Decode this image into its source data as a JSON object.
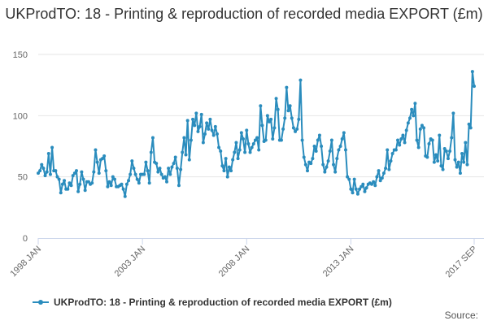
{
  "chart_data": {
    "type": "line",
    "title": "UKProdTO: 18 - Printing & reproduction of recorded media EXPORT (£m)",
    "xlabel": "",
    "ylabel": "",
    "ylim": [
      0,
      150
    ],
    "yticks": [
      0,
      50,
      100,
      150
    ],
    "xticks": [
      "1998 JAN",
      "2003 JAN",
      "2008 JAN",
      "2013 JAN",
      "2017 SEP"
    ],
    "grid": true,
    "legend_position": "bottom",
    "x_start": "1998 JAN",
    "x_end": "2017 SEP",
    "frequency": "monthly",
    "series": [
      {
        "name": "UKProdTO: 18 - Printing & reproduction of recorded media EXPORT (£m)",
        "color": "#2a8cbd",
        "values": [
          53,
          55,
          60,
          57,
          51,
          54,
          69,
          52,
          74,
          55,
          55,
          50,
          48,
          37,
          44,
          47,
          40,
          40,
          45,
          43,
          51,
          53,
          55,
          38,
          44,
          54,
          48,
          39,
          46,
          46,
          44,
          45,
          54,
          72,
          62,
          53,
          64,
          65,
          67,
          55,
          42,
          46,
          43,
          50,
          48,
          42,
          42,
          43,
          44,
          40,
          34,
          44,
          47,
          52,
          63,
          57,
          52,
          48,
          45,
          52,
          52,
          52,
          62,
          55,
          45,
          70,
          82,
          62,
          61,
          54,
          57,
          52,
          49,
          50,
          46,
          57,
          52,
          58,
          61,
          66,
          57,
          43,
          56,
          70,
          82,
          68,
          96,
          64,
          80,
          97,
          92,
          102,
          87,
          91,
          101,
          78,
          85,
          94,
          89,
          97,
          88,
          84,
          91,
          85,
          74,
          71,
          59,
          55,
          65,
          50,
          58,
          55,
          64,
          70,
          78,
          65,
          72,
          86,
          81,
          70,
          88,
          77,
          70,
          74,
          77,
          80,
          82,
          72,
          108,
          92,
          79,
          80,
          100,
          95,
          97,
          81,
          90,
          114,
          105,
          80,
          80,
          89,
          98,
          123,
          104,
          108,
          98,
          90,
          87,
          89,
          97,
          129,
          80,
          66,
          60,
          55,
          62,
          61,
          65,
          75,
          71,
          80,
          84,
          75,
          60,
          54,
          58,
          63,
          71,
          80,
          60,
          54,
          65,
          72,
          75,
          81,
          86,
          72,
          50,
          48,
          40,
          37,
          48,
          40,
          36,
          40,
          42,
          44,
          38,
          41,
          44,
          45,
          44,
          46,
          43,
          50,
          55,
          47,
          49,
          53,
          57,
          72,
          56,
          63,
          69,
          72,
          72,
          80,
          76,
          81,
          84,
          78,
          88,
          94,
          98,
          105,
          100,
          110,
          80,
          74,
          89,
          92,
          90,
          67,
          66,
          77,
          81,
          80,
          62,
          68,
          63,
          84,
          59,
          56,
          73,
          71,
          65,
          71,
          82,
          102,
          64,
          58,
          62,
          53,
          69,
          62,
          78,
          60,
          93,
          90,
          136,
          124
        ]
      }
    ]
  },
  "legend": {
    "label": "UKProdTO: 18 - Printing & reproduction of recorded media EXPORT (£m)"
  },
  "source_label": "Source:",
  "colors": {
    "series": "#2a8cbd",
    "grid": "#e6e6e6",
    "axis": "#ccd6eb",
    "tick_label": "#666666"
  }
}
